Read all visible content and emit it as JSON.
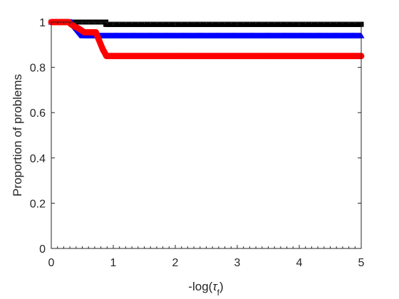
{
  "chart_data": {
    "type": "line",
    "xlabel_prefix": "-log(",
    "xlabel_symbol": "τ",
    "xlabel_subscript": "f",
    "xlabel_suffix": ")",
    "ylabel": "Proportion of problems",
    "xlim": [
      0,
      5
    ],
    "ylim": [
      0,
      1
    ],
    "xticks": [
      0,
      1,
      2,
      3,
      4,
      5
    ],
    "yticks": [
      0,
      0.2,
      0.4,
      0.6,
      0.8,
      1
    ],
    "ytick_labels": [
      "0",
      "0.2",
      "0.4",
      "0.6",
      "0.8",
      "1"
    ],
    "grid": false,
    "series": [
      {
        "color": "#000000",
        "marker": "square",
        "points": [
          [
            0,
            1.0
          ],
          [
            0.88,
            1.0
          ],
          [
            0.88,
            0.99
          ],
          [
            5,
            0.99
          ]
        ]
      },
      {
        "color": "#0000ff",
        "marker": "triangle",
        "points": [
          [
            0,
            1.0
          ],
          [
            0.33,
            1.0
          ],
          [
            0.36,
            0.99
          ],
          [
            0.38,
            0.98
          ],
          [
            0.41,
            0.97
          ],
          [
            0.44,
            0.96
          ],
          [
            0.47,
            0.95
          ],
          [
            0.5,
            0.94
          ],
          [
            5,
            0.94
          ]
        ]
      },
      {
        "color": "#ff0000",
        "marker": "circle",
        "points": [
          [
            0,
            1.0
          ],
          [
            0.28,
            1.0
          ],
          [
            0.32,
            0.99
          ],
          [
            0.38,
            0.98
          ],
          [
            0.45,
            0.97
          ],
          [
            0.53,
            0.955
          ],
          [
            0.72,
            0.955
          ],
          [
            0.74,
            0.94
          ],
          [
            0.77,
            0.92
          ],
          [
            0.8,
            0.9
          ],
          [
            0.83,
            0.88
          ],
          [
            0.86,
            0.865
          ],
          [
            0.89,
            0.85
          ],
          [
            5,
            0.85
          ]
        ]
      }
    ]
  }
}
